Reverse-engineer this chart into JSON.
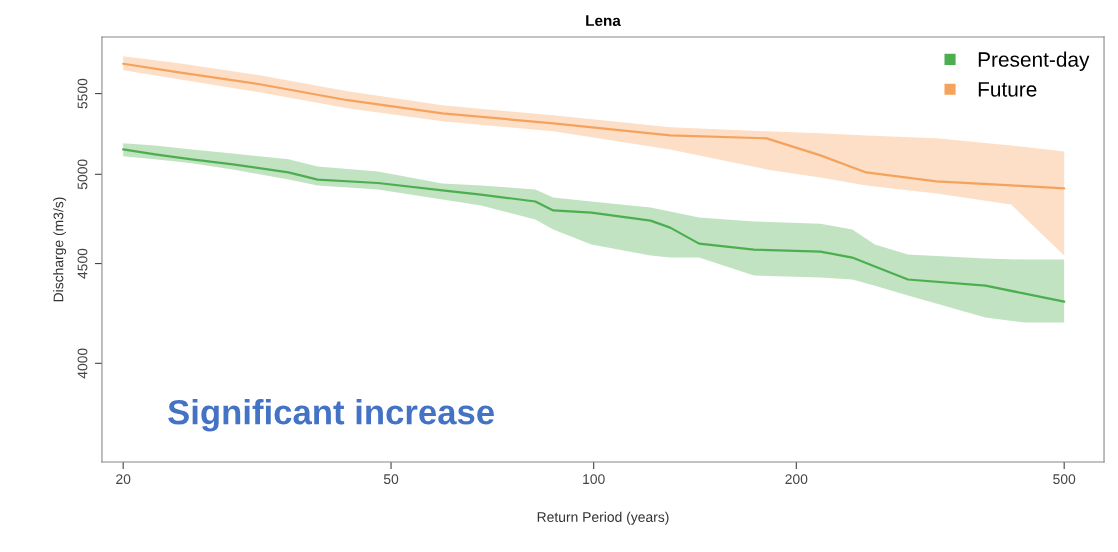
{
  "chart_data": {
    "type": "line",
    "title": "Lena",
    "xlabel": "Return Period (years)",
    "ylabel": "Discharge (m3/s)",
    "xlim": [
      18.6,
      573
    ],
    "xticks": [
      20,
      50,
      100,
      200,
      500
    ],
    "ylim": [
      3560,
      5880
    ],
    "yticks": [
      4000,
      4500,
      5000,
      5500
    ],
    "log": "xy",
    "legend": "top right",
    "annotations": [
      "Significant increase"
    ],
    "series": [
      {
        "name": "Present-day",
        "color": "#4cae4f",
        "x": [
          20,
          22.3,
          25.3,
          29.1,
          35.2,
          38.9,
          47.8,
          59.6,
          68.0,
          81.9,
          87.1,
          99.2,
          121.5,
          129.9,
          143.4,
          173,
          217.2,
          242.2,
          261.7,
          293,
          382,
          437,
          500
        ],
        "values": [
          5149,
          5119,
          5089,
          5059,
          5011,
          4969,
          4949,
          4906,
          4882,
          4842,
          4791,
          4779,
          4734,
          4695,
          4607,
          4575,
          4564,
          4532,
          4484,
          4416,
          4384,
          4343,
          4302
        ],
        "upper": [
          5186,
          5173,
          5149,
          5125,
          5089,
          5047,
          5017,
          4946,
          4935,
          4911,
          4865,
          4842,
          4808,
          4785,
          4751,
          4729,
          4717,
          4684,
          4602,
          4548,
          4527,
          4521,
          4521
        ],
        "lower": [
          5107,
          5089,
          5065,
          5029,
          4969,
          4935,
          4911,
          4853,
          4819,
          4740,
          4684,
          4602,
          4543,
          4532,
          4532,
          4437,
          4426,
          4416,
          4384,
          4333,
          4222,
          4197,
          4197
        ]
      },
      {
        "name": "Future",
        "color": "#f5a25d",
        "x": [
          20,
          24.2,
          31.9,
          43.1,
          59.6,
          87.1,
          129.9,
          180.7,
          217.2,
          254,
          323,
          417,
          500
        ],
        "values": [
          5697,
          5640,
          5561,
          5457,
          5373,
          5310,
          5235,
          5217,
          5113,
          5011,
          4958,
          4935,
          4917
        ],
        "upper": [
          5748,
          5701,
          5620,
          5515,
          5424,
          5361,
          5285,
          5260,
          5248,
          5235,
          5217,
          5173,
          5137
        ],
        "lower": [
          5654,
          5594,
          5508,
          5405,
          5323,
          5260,
          5149,
          5029,
          4981,
          4935,
          4888,
          4825,
          4543
        ]
      }
    ]
  }
}
